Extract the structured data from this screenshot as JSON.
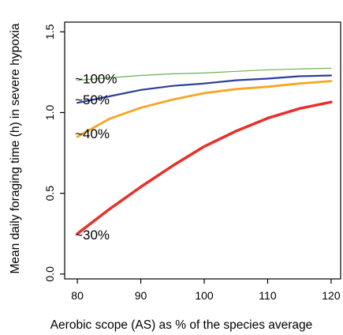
{
  "chart_data": {
    "type": "line",
    "xlabel": "Aerobic scope (AS) as % of the species average",
    "ylabel": "Mean daily foraging time (h) in severe hypoxia",
    "xlim": [
      78,
      121.5
    ],
    "ylim": [
      -0.03,
      1.56
    ],
    "x_ticks": [
      "80",
      "90",
      "100",
      "110",
      "120"
    ],
    "y_ticks": [
      "0.0",
      "0.5",
      "1.0",
      "1.5"
    ],
    "grid": false,
    "legend": "none",
    "series": [
      {
        "name": "~100%",
        "color": "#6ab04c",
        "stroke_width": 1.2,
        "label_x": 80,
        "label_y": 1.21,
        "points": [
          [
            80,
            1.2
          ],
          [
            85,
            1.215
          ],
          [
            90,
            1.23
          ],
          [
            95,
            1.24
          ],
          [
            100,
            1.245
          ],
          [
            105,
            1.255
          ],
          [
            110,
            1.265
          ],
          [
            115,
            1.27
          ],
          [
            120,
            1.275
          ]
        ]
      },
      {
        "name": "~50%",
        "color": "#2c3e9a",
        "stroke_width": 2.2,
        "label_x": 80,
        "label_y": 1.08,
        "points": [
          [
            80,
            1.06
          ],
          [
            85,
            1.1
          ],
          [
            90,
            1.14
          ],
          [
            95,
            1.165
          ],
          [
            100,
            1.18
          ],
          [
            105,
            1.2
          ],
          [
            110,
            1.21
          ],
          [
            115,
            1.225
          ],
          [
            120,
            1.23
          ]
        ]
      },
      {
        "name": "~40%",
        "color": "#f5a623",
        "stroke_width": 2.8,
        "label_x": 80,
        "label_y": 0.87,
        "points": [
          [
            80,
            0.85
          ],
          [
            85,
            0.96
          ],
          [
            90,
            1.03
          ],
          [
            95,
            1.08
          ],
          [
            100,
            1.12
          ],
          [
            105,
            1.145
          ],
          [
            110,
            1.16
          ],
          [
            115,
            1.18
          ],
          [
            120,
            1.195
          ]
        ]
      },
      {
        "name": "~30%",
        "color": "#e8302a",
        "stroke_width": 3.5,
        "label_x": 80,
        "label_y": 0.245,
        "points": [
          [
            80,
            0.25
          ],
          [
            85,
            0.4
          ],
          [
            90,
            0.54
          ],
          [
            95,
            0.67
          ],
          [
            100,
            0.79
          ],
          [
            105,
            0.885
          ],
          [
            110,
            0.965
          ],
          [
            115,
            1.025
          ],
          [
            120,
            1.065
          ]
        ]
      }
    ]
  }
}
